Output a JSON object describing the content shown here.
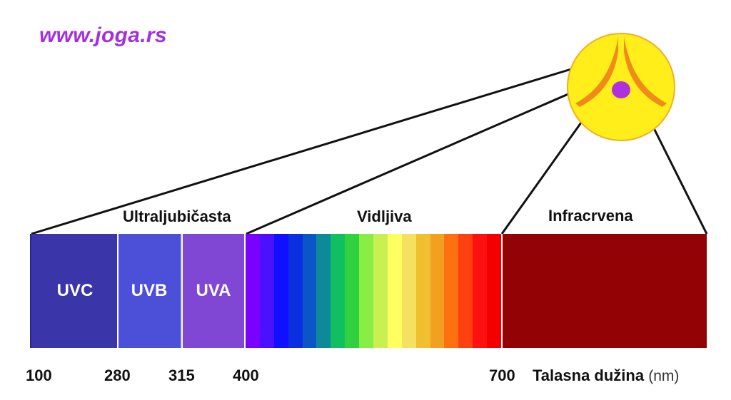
{
  "site": {
    "url": "www.joga.rs",
    "color": "#a52fe0"
  },
  "bands": {
    "ultraviolet": "Ultraljubičasta",
    "visible": "Vidljiva",
    "infrared": "Infracrvena"
  },
  "uv_segments": [
    {
      "label": "UVC",
      "color": "#3a35a8"
    },
    {
      "label": "UVB",
      "color": "#4c4fd8"
    },
    {
      "label": "UVA",
      "color": "#8046d4"
    }
  ],
  "visible_colors": [
    "#7a00ff",
    "#4a10ff",
    "#1010ff",
    "#0a2ee0",
    "#0a55c8",
    "#0c8a9a",
    "#10c060",
    "#30d040",
    "#88ee44",
    "#c8f050",
    "#ffff60",
    "#f6e060",
    "#f0c030",
    "#f2a020",
    "#ff7010",
    "#ff4010",
    "#ff1010",
    "#f50000"
  ],
  "infrared_color": "#930204",
  "axis": {
    "ticks": [
      "100",
      "280",
      "315",
      "400",
      "700"
    ],
    "title": "Talasna dužina",
    "unit": "(nm)"
  },
  "logo": {
    "icon": "yoga-sun-logo",
    "circle": "#ffee1a",
    "lines": "#f08a1a",
    "dot": "#b030e0"
  }
}
